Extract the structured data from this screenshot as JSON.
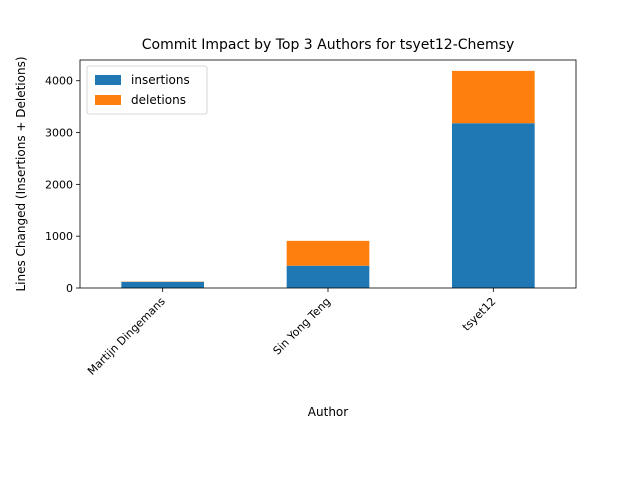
{
  "chart_data": {
    "type": "bar",
    "stacked": true,
    "title": "Commit Impact by Top 3 Authors for tsyet12-Chemsy",
    "xlabel": "Author",
    "ylabel": "Lines Changed (Insertions + Deletions)",
    "categories": [
      "Martijn Dingemans",
      "Sin Yong Teng",
      "tsyet12"
    ],
    "series": [
      {
        "name": "insertions",
        "values": [
          120,
          430,
          3180
        ],
        "color": "#1f77b4"
      },
      {
        "name": "deletions",
        "values": [
          5,
          480,
          1010
        ],
        "color": "#ff7f0e"
      }
    ],
    "ylim": [
      0,
      4400
    ],
    "yticks": [
      0,
      1000,
      2000,
      3000,
      4000
    ],
    "grid": false,
    "legend": "top-left"
  }
}
